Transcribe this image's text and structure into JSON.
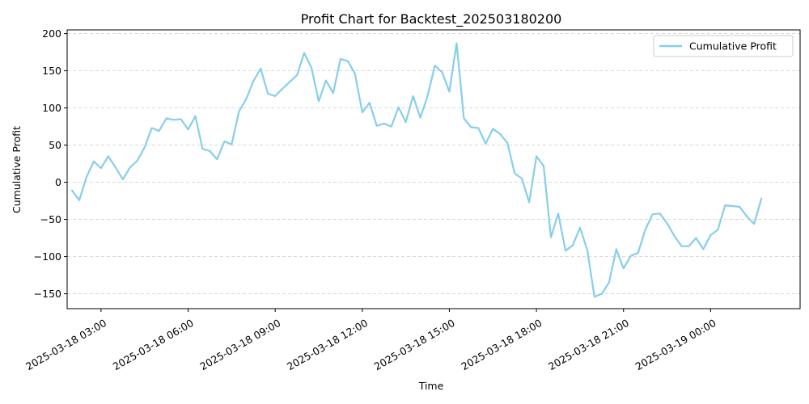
{
  "chart_data": {
    "type": "line",
    "title": "Profit Chart for Backtest_202503180200",
    "xlabel": "Time",
    "ylabel": "Cumulative Profit",
    "ylim": [
      -170,
      205
    ],
    "xlim": [
      "2025-03-18 01:50",
      "2025-03-19 03:05"
    ],
    "grid": "y dashed",
    "legend_position": "top-right",
    "line_color": "#87ceeb",
    "y_ticks": [
      -150,
      -100,
      -50,
      0,
      50,
      100,
      150,
      200
    ],
    "y_tick_labels": [
      "−150",
      "−100",
      "−50",
      "0",
      "50",
      "100",
      "150",
      "200"
    ],
    "x_ticks": [
      {
        "time": "2025-03-18 03:00",
        "label": "2025-03-18 03:00"
      },
      {
        "time": "2025-03-18 06:00",
        "label": "2025-03-18 06:00"
      },
      {
        "time": "2025-03-18 09:00",
        "label": "2025-03-18 09:00"
      },
      {
        "time": "2025-03-18 12:00",
        "label": "2025-03-18 12:00"
      },
      {
        "time": "2025-03-18 15:00",
        "label": "2025-03-18 15:00"
      },
      {
        "time": "2025-03-18 18:00",
        "label": "2025-03-18 18:00"
      },
      {
        "time": "2025-03-18 21:00",
        "label": "2025-03-18 21:00"
      },
      {
        "time": "2025-03-19 00:00",
        "label": "2025-03-19 00:00"
      }
    ],
    "series": [
      {
        "name": "Cumulative Profit",
        "points": [
          [
            "2025-03-18 02:00",
            -11
          ],
          [
            "2025-03-18 02:15",
            -24
          ],
          [
            "2025-03-18 02:30",
            7
          ],
          [
            "2025-03-18 02:45",
            28
          ],
          [
            "2025-03-18 03:00",
            19
          ],
          [
            "2025-03-18 03:15",
            35
          ],
          [
            "2025-03-18 03:30",
            20
          ],
          [
            "2025-03-18 03:45",
            4
          ],
          [
            "2025-03-18 04:00",
            20
          ],
          [
            "2025-03-18 04:15",
            29
          ],
          [
            "2025-03-18 04:30",
            47
          ],
          [
            "2025-03-18 04:45",
            73
          ],
          [
            "2025-03-18 05:00",
            69
          ],
          [
            "2025-03-18 05:15",
            86
          ],
          [
            "2025-03-18 05:30",
            84
          ],
          [
            "2025-03-18 05:45",
            85
          ],
          [
            "2025-03-18 06:00",
            71
          ],
          [
            "2025-03-18 06:15",
            89
          ],
          [
            "2025-03-18 06:30",
            45
          ],
          [
            "2025-03-18 06:45",
            42
          ],
          [
            "2025-03-18 07:00",
            31
          ],
          [
            "2025-03-18 07:15",
            55
          ],
          [
            "2025-03-18 07:30",
            51
          ],
          [
            "2025-03-18 07:45",
            95
          ],
          [
            "2025-03-18 08:00",
            112
          ],
          [
            "2025-03-18 08:15",
            136
          ],
          [
            "2025-03-18 08:30",
            153
          ],
          [
            "2025-03-18 08:45",
            119
          ],
          [
            "2025-03-18 09:00",
            116
          ],
          [
            "2025-03-18 09:15",
            126
          ],
          [
            "2025-03-18 09:30",
            135
          ],
          [
            "2025-03-18 09:45",
            144
          ],
          [
            "2025-03-18 10:00",
            174
          ],
          [
            "2025-03-18 10:15",
            154
          ],
          [
            "2025-03-18 10:30",
            109
          ],
          [
            "2025-03-18 10:45",
            137
          ],
          [
            "2025-03-18 11:00",
            120
          ],
          [
            "2025-03-18 11:15",
            166
          ],
          [
            "2025-03-18 11:30",
            163
          ],
          [
            "2025-03-18 11:45",
            146
          ],
          [
            "2025-03-18 12:00",
            94
          ],
          [
            "2025-03-18 12:15",
            107
          ],
          [
            "2025-03-18 12:30",
            76
          ],
          [
            "2025-03-18 12:45",
            79
          ],
          [
            "2025-03-18 13:00",
            75
          ],
          [
            "2025-03-18 13:15",
            101
          ],
          [
            "2025-03-18 13:30",
            81
          ],
          [
            "2025-03-18 13:45",
            116
          ],
          [
            "2025-03-18 14:00",
            87
          ],
          [
            "2025-03-18 14:15",
            116
          ],
          [
            "2025-03-18 14:30",
            157
          ],
          [
            "2025-03-18 14:45",
            148
          ],
          [
            "2025-03-18 15:00",
            122
          ],
          [
            "2025-03-18 15:15",
            187
          ],
          [
            "2025-03-18 15:30",
            86
          ],
          [
            "2025-03-18 15:45",
            74
          ],
          [
            "2025-03-18 16:00",
            73
          ],
          [
            "2025-03-18 16:15",
            52
          ],
          [
            "2025-03-18 16:30",
            72
          ],
          [
            "2025-03-18 16:45",
            65
          ],
          [
            "2025-03-18 17:00",
            53
          ],
          [
            "2025-03-18 17:15",
            12
          ],
          [
            "2025-03-18 17:30",
            5
          ],
          [
            "2025-03-18 17:45",
            -27
          ],
          [
            "2025-03-18 18:00",
            35
          ],
          [
            "2025-03-18 18:15",
            22
          ],
          [
            "2025-03-18 18:30",
            -74
          ],
          [
            "2025-03-18 18:45",
            -42
          ],
          [
            "2025-03-18 19:00",
            -92
          ],
          [
            "2025-03-18 19:15",
            -85
          ],
          [
            "2025-03-18 19:30",
            -61
          ],
          [
            "2025-03-18 19:45",
            -91
          ],
          [
            "2025-03-18 20:00",
            -154
          ],
          [
            "2025-03-18 20:15",
            -150
          ],
          [
            "2025-03-18 20:30",
            -135
          ],
          [
            "2025-03-18 20:45",
            -90
          ],
          [
            "2025-03-18 21:00",
            -116
          ],
          [
            "2025-03-18 21:15",
            -99
          ],
          [
            "2025-03-18 21:30",
            -95
          ],
          [
            "2025-03-18 21:45",
            -64
          ],
          [
            "2025-03-18 22:00",
            -43
          ],
          [
            "2025-03-18 22:15",
            -42
          ],
          [
            "2025-03-18 22:30",
            -55
          ],
          [
            "2025-03-18 22:45",
            -72
          ],
          [
            "2025-03-18 23:00",
            -86
          ],
          [
            "2025-03-18 23:15",
            -86
          ],
          [
            "2025-03-18 23:30",
            -75
          ],
          [
            "2025-03-18 23:45",
            -90
          ],
          [
            "2025-03-19 00:00",
            -71
          ],
          [
            "2025-03-19 00:15",
            -64
          ],
          [
            "2025-03-19 00:30",
            -31
          ],
          [
            "2025-03-19 00:45",
            -32
          ],
          [
            "2025-03-19 01:00",
            -33
          ],
          [
            "2025-03-19 01:15",
            -46
          ],
          [
            "2025-03-19 01:30",
            -56
          ],
          [
            "2025-03-19 01:45",
            -22
          ]
        ]
      }
    ]
  }
}
